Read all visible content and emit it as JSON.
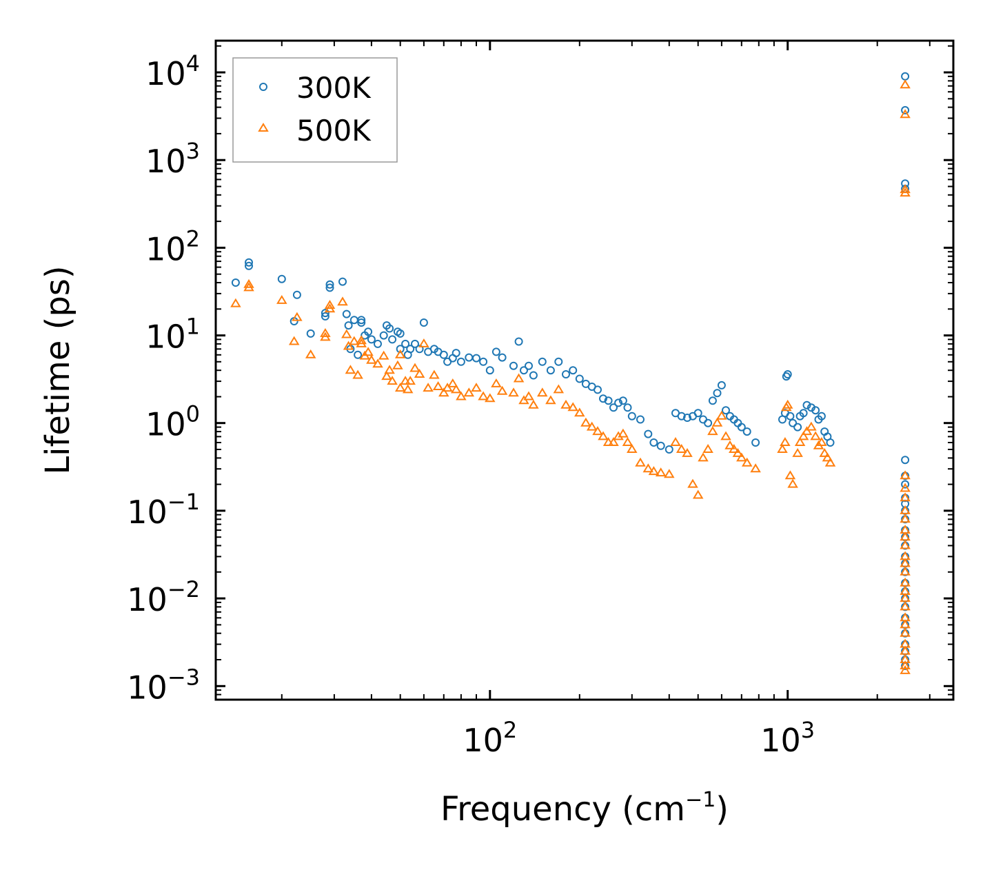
{
  "chart_data": {
    "type": "scatter",
    "xscale": "log",
    "yscale": "log",
    "xlabel": "Frequency (cm",
    "xlabel_sup": "−1",
    "xlabel_end": ")",
    "ylabel": "Lifetime (ps)",
    "xlim": [
      12,
      3600
    ],
    "ylim": [
      0.0007,
      23000
    ],
    "xticks": [
      {
        "base": "10",
        "exp": "2",
        "value": 100
      },
      {
        "base": "10",
        "exp": "3",
        "value": 1000
      }
    ],
    "yticks": [
      {
        "base": "10",
        "exp": "4",
        "value": 10000
      },
      {
        "base": "10",
        "exp": "3",
        "value": 1000
      },
      {
        "base": "10",
        "exp": "2",
        "value": 100
      },
      {
        "base": "10",
        "exp": "1",
        "value": 10
      },
      {
        "base": "10",
        "exp": "0",
        "value": 1
      },
      {
        "base": "10",
        "exp": "−1",
        "value": 0.1
      },
      {
        "base": "10",
        "exp": "−2",
        "value": 0.01
      },
      {
        "base": "10",
        "exp": "−3",
        "value": 0.001
      }
    ],
    "legend": {
      "location": "upper-left",
      "entries": [
        "300K",
        "500K"
      ]
    },
    "series": [
      {
        "name": "300K",
        "marker": "circle",
        "color": "#1f77b4",
        "points": [
          [
            14,
            40
          ],
          [
            15.5,
            62
          ],
          [
            15.5,
            68
          ],
          [
            20,
            44
          ],
          [
            22,
            14.5
          ],
          [
            22.5,
            29
          ],
          [
            25,
            10.5
          ],
          [
            28,
            16.5
          ],
          [
            28,
            18
          ],
          [
            29,
            35
          ],
          [
            29,
            38
          ],
          [
            32,
            41
          ],
          [
            33,
            17.5
          ],
          [
            33.5,
            13
          ],
          [
            34,
            7
          ],
          [
            35,
            15
          ],
          [
            36,
            6
          ],
          [
            37,
            14
          ],
          [
            37,
            15
          ],
          [
            38,
            10
          ],
          [
            39,
            11
          ],
          [
            40,
            9
          ],
          [
            42,
            8
          ],
          [
            44,
            10
          ],
          [
            45,
            13
          ],
          [
            46,
            12
          ],
          [
            47,
            9
          ],
          [
            49,
            11
          ],
          [
            50,
            10.5
          ],
          [
            50,
            7
          ],
          [
            52,
            8
          ],
          [
            53,
            6
          ],
          [
            54,
            7
          ],
          [
            56,
            8
          ],
          [
            58,
            7
          ],
          [
            60,
            14
          ],
          [
            62,
            6.5
          ],
          [
            65,
            7
          ],
          [
            67,
            6.5
          ],
          [
            70,
            6
          ],
          [
            72,
            5
          ],
          [
            75,
            5.5
          ],
          [
            77,
            6.3
          ],
          [
            80,
            5
          ],
          [
            85,
            5.6
          ],
          [
            90,
            5.5
          ],
          [
            95,
            5
          ],
          [
            100,
            4
          ],
          [
            105,
            6.5
          ],
          [
            110,
            5.6
          ],
          [
            120,
            4.5
          ],
          [
            125,
            8.5
          ],
          [
            130,
            4
          ],
          [
            135,
            4.5
          ],
          [
            140,
            3.5
          ],
          [
            150,
            5
          ],
          [
            160,
            4
          ],
          [
            170,
            5
          ],
          [
            180,
            3.6
          ],
          [
            190,
            4
          ],
          [
            200,
            3.2
          ],
          [
            210,
            2.8
          ],
          [
            220,
            2.6
          ],
          [
            230,
            2.4
          ],
          [
            240,
            1.9
          ],
          [
            250,
            1.8
          ],
          [
            260,
            1.5
          ],
          [
            270,
            1.7
          ],
          [
            280,
            1.8
          ],
          [
            290,
            1.5
          ],
          [
            300,
            1.2
          ],
          [
            320,
            1.1
          ],
          [
            340,
            0.75
          ],
          [
            355,
            0.6
          ],
          [
            375,
            0.55
          ],
          [
            400,
            0.5
          ],
          [
            420,
            1.3
          ],
          [
            440,
            1.2
          ],
          [
            460,
            1.15
          ],
          [
            480,
            1.2
          ],
          [
            500,
            1.3
          ],
          [
            520,
            1.1
          ],
          [
            540,
            1.0
          ],
          [
            560,
            1.8
          ],
          [
            580,
            2.2
          ],
          [
            600,
            2.7
          ],
          [
            620,
            1.4
          ],
          [
            640,
            1.2
          ],
          [
            660,
            1.1
          ],
          [
            680,
            1.0
          ],
          [
            700,
            0.9
          ],
          [
            730,
            0.8
          ],
          [
            780,
            0.6
          ],
          [
            960,
            1.1
          ],
          [
            980,
            1.3
          ],
          [
            990,
            3.4
          ],
          [
            1000,
            3.6
          ],
          [
            1020,
            1.2
          ],
          [
            1040,
            1.0
          ],
          [
            1080,
            0.9
          ],
          [
            1100,
            1.2
          ],
          [
            1130,
            1.3
          ],
          [
            1160,
            1.6
          ],
          [
            1200,
            1.5
          ],
          [
            1240,
            1.4
          ],
          [
            1270,
            1.1
          ],
          [
            1300,
            1.2
          ],
          [
            1330,
            0.8
          ],
          [
            1360,
            0.7
          ],
          [
            1390,
            0.6
          ],
          [
            2480,
            9000
          ],
          [
            2480,
            3700
          ],
          [
            2480,
            540
          ],
          [
            2480,
            470
          ],
          [
            2480,
            0.38
          ],
          [
            2480,
            0.25
          ],
          [
            2480,
            0.2
          ],
          [
            2480,
            0.14
          ],
          [
            2480,
            0.12
          ],
          [
            2480,
            0.1
          ],
          [
            2480,
            0.08
          ],
          [
            2480,
            0.06
          ],
          [
            2480,
            0.05
          ],
          [
            2480,
            0.04
          ],
          [
            2480,
            0.03
          ],
          [
            2480,
            0.025
          ],
          [
            2480,
            0.02
          ],
          [
            2480,
            0.015
          ],
          [
            2480,
            0.012
          ],
          [
            2480,
            0.01
          ],
          [
            2480,
            0.008
          ],
          [
            2480,
            0.006
          ],
          [
            2480,
            0.005
          ],
          [
            2480,
            0.004
          ],
          [
            2480,
            0.003
          ],
          [
            2480,
            0.0025
          ],
          [
            2480,
            0.002
          ],
          [
            2480,
            0.0017
          ]
        ]
      },
      {
        "name": "500K",
        "marker": "triangle",
        "color": "#ff7f0e",
        "points": [
          [
            14,
            23
          ],
          [
            15.5,
            35
          ],
          [
            15.5,
            38
          ],
          [
            20,
            25
          ],
          [
            22,
            8.5
          ],
          [
            22.5,
            16
          ],
          [
            25,
            6
          ],
          [
            28,
            9.5
          ],
          [
            28,
            10.5
          ],
          [
            29,
            20
          ],
          [
            29,
            22
          ],
          [
            32,
            24
          ],
          [
            33,
            10.2
          ],
          [
            33.5,
            7.5
          ],
          [
            34,
            4
          ],
          [
            35,
            8.5
          ],
          [
            36,
            3.5
          ],
          [
            37,
            8
          ],
          [
            37,
            8.7
          ],
          [
            38,
            5.8
          ],
          [
            39,
            6.4
          ],
          [
            40,
            5.2
          ],
          [
            42,
            4.7
          ],
          [
            44,
            5.8
          ],
          [
            45,
            3.4
          ],
          [
            46,
            4
          ],
          [
            47,
            3
          ],
          [
            49,
            4.5
          ],
          [
            50,
            6
          ],
          [
            50,
            2.5
          ],
          [
            52,
            3
          ],
          [
            53,
            2.4
          ],
          [
            54,
            3
          ],
          [
            56,
            4.2
          ],
          [
            58,
            3.6
          ],
          [
            60,
            8
          ],
          [
            62,
            2.5
          ],
          [
            65,
            3.5
          ],
          [
            67,
            2.6
          ],
          [
            70,
            2.2
          ],
          [
            72,
            2.5
          ],
          [
            75,
            2.8
          ],
          [
            77,
            2.4
          ],
          [
            80,
            2.0
          ],
          [
            85,
            2.2
          ],
          [
            90,
            2.5
          ],
          [
            95,
            2
          ],
          [
            100,
            1.9
          ],
          [
            105,
            2.8
          ],
          [
            110,
            2.3
          ],
          [
            120,
            2.2
          ],
          [
            125,
            3.2
          ],
          [
            130,
            1.8
          ],
          [
            135,
            2.0
          ],
          [
            140,
            1.6
          ],
          [
            150,
            2.2
          ],
          [
            160,
            1.8
          ],
          [
            170,
            2.4
          ],
          [
            180,
            1.6
          ],
          [
            190,
            1.5
          ],
          [
            200,
            1.3
          ],
          [
            210,
            1.0
          ],
          [
            220,
            0.9
          ],
          [
            230,
            0.8
          ],
          [
            240,
            0.7
          ],
          [
            250,
            0.6
          ],
          [
            260,
            0.6
          ],
          [
            270,
            0.7
          ],
          [
            280,
            0.75
          ],
          [
            290,
            0.6
          ],
          [
            300,
            0.5
          ],
          [
            320,
            0.35
          ],
          [
            340,
            0.3
          ],
          [
            355,
            0.28
          ],
          [
            375,
            0.27
          ],
          [
            400,
            0.26
          ],
          [
            420,
            0.6
          ],
          [
            440,
            0.5
          ],
          [
            460,
            0.45
          ],
          [
            480,
            0.2
          ],
          [
            500,
            0.15
          ],
          [
            520,
            0.4
          ],
          [
            540,
            0.5
          ],
          [
            560,
            0.8
          ],
          [
            580,
            1.0
          ],
          [
            600,
            1.2
          ],
          [
            620,
            0.7
          ],
          [
            640,
            0.55
          ],
          [
            660,
            0.5
          ],
          [
            680,
            0.45
          ],
          [
            700,
            0.4
          ],
          [
            730,
            0.35
          ],
          [
            780,
            0.3
          ],
          [
            960,
            0.5
          ],
          [
            980,
            0.6
          ],
          [
            990,
            1.5
          ],
          [
            1000,
            1.6
          ],
          [
            1020,
            0.25
          ],
          [
            1040,
            0.2
          ],
          [
            1080,
            0.45
          ],
          [
            1100,
            0.6
          ],
          [
            1130,
            0.7
          ],
          [
            1160,
            0.8
          ],
          [
            1200,
            0.9
          ],
          [
            1240,
            0.7
          ],
          [
            1270,
            0.55
          ],
          [
            1300,
            0.6
          ],
          [
            1330,
            0.45
          ],
          [
            1360,
            0.4
          ],
          [
            1390,
            0.35
          ],
          [
            2480,
            7200
          ],
          [
            2480,
            3300
          ],
          [
            2480,
            460
          ],
          [
            2480,
            420
          ],
          [
            2480,
            0.25
          ],
          [
            2480,
            0.18
          ],
          [
            2480,
            0.14
          ],
          [
            2480,
            0.1
          ],
          [
            2480,
            0.08
          ],
          [
            2480,
            0.06
          ],
          [
            2480,
            0.05
          ],
          [
            2480,
            0.04
          ],
          [
            2480,
            0.03
          ],
          [
            2480,
            0.025
          ],
          [
            2480,
            0.02
          ],
          [
            2480,
            0.015
          ],
          [
            2480,
            0.012
          ],
          [
            2480,
            0.01
          ],
          [
            2480,
            0.008
          ],
          [
            2480,
            0.006
          ],
          [
            2480,
            0.005
          ],
          [
            2480,
            0.004
          ],
          [
            2480,
            0.003
          ],
          [
            2480,
            0.0025
          ],
          [
            2480,
            0.002
          ],
          [
            2480,
            0.0017
          ],
          [
            2480,
            0.0015
          ]
        ]
      }
    ]
  }
}
